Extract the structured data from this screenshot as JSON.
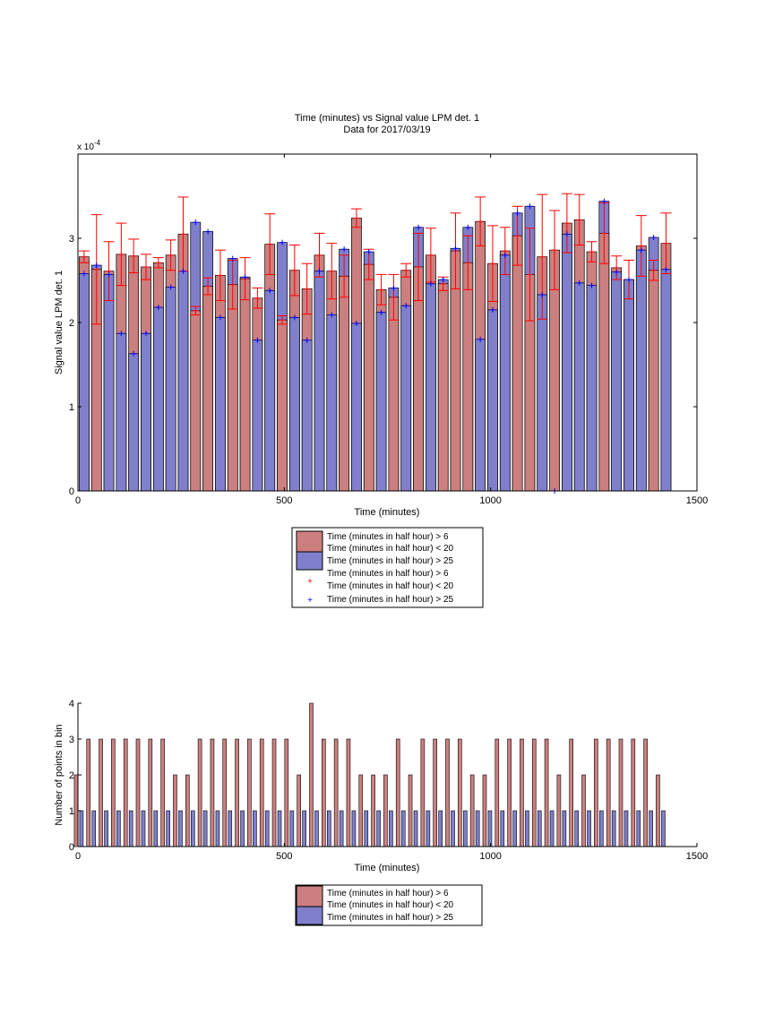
{
  "colors": {
    "red_bar": "#cc7f7f",
    "blue_bar": "#7f7fcc",
    "error_bar": "#ff0000",
    "blue_marker": "#0000ff",
    "axis": "#000000"
  },
  "chart_data": [
    {
      "type": "bar",
      "title": "Time (minutes) vs Signal value LPM det. 1",
      "subtitle": "Data for 2017/03/19",
      "xlabel": "Time (minutes)",
      "ylabel": "Signal value LPM det. 1",
      "exponent_label": "x 10",
      "exponent_power": "-4",
      "xlim": [
        0,
        1500
      ],
      "ylim": [
        0,
        4
      ],
      "xticks": [
        "0",
        "500",
        "1000",
        "1500"
      ],
      "yticks": [
        "0",
        "1",
        "2",
        "3"
      ],
      "x": [
        15,
        45,
        75,
        105,
        135,
        165,
        195,
        225,
        255,
        285,
        315,
        345,
        375,
        405,
        435,
        465,
        495,
        525,
        555,
        585,
        615,
        645,
        675,
        705,
        735,
        765,
        795,
        825,
        855,
        885,
        915,
        945,
        975,
        1005,
        1035,
        1065,
        1095,
        1125,
        1155,
        1185,
        1215,
        1245,
        1275,
        1305,
        1335,
        1365,
        1395,
        1425
      ],
      "series": [
        {
          "name": "Time (minutes in half hour) > 6\nTime (minutes in half hour) < 20",
          "values": [
            2.78,
            2.63,
            2.61,
            2.81,
            2.79,
            2.66,
            2.71,
            2.8,
            3.05,
            2.14,
            2.43,
            2.56,
            2.45,
            2.52,
            2.29,
            2.93,
            2.03,
            2.62,
            2.4,
            2.8,
            2.61,
            2.55,
            3.24,
            2.69,
            2.39,
            2.3,
            2.62,
            2.66,
            2.8,
            2.46,
            2.85,
            2.71,
            3.2,
            2.7,
            2.85,
            3.03,
            2.57,
            2.78,
            2.86,
            3.18,
            3.22,
            2.84,
            3.06,
            2.65,
            2.51,
            2.91,
            2.62,
            2.94
          ],
          "errors": [
            0.07,
            0.65,
            0.35,
            0.37,
            0.2,
            0.15,
            0.06,
            0.18,
            0.44,
            0.05,
            0.1,
            0.3,
            0.29,
            0.25,
            0.12,
            0.36,
            0.05,
            0.3,
            0.3,
            0.26,
            0.33,
            0.25,
            0.11,
            0.18,
            0.18,
            0.27,
            0.08,
            0.4,
            0.32,
            0.08,
            0.45,
            0.32,
            0.29,
            0.45,
            0.28,
            0.35,
            0.55,
            0.74,
            0.47,
            0.35,
            0.3,
            0.12,
            0.36,
            0.14,
            0.23,
            0.36,
            0.12,
            0.36
          ]
        },
        {
          "name": "Time (minutes in half hour) > 25",
          "values": [
            2.58,
            2.68,
            2.57,
            1.87,
            1.63,
            1.87,
            2.18,
            2.42,
            2.61,
            3.19,
            3.08,
            2.06,
            2.76,
            2.54,
            1.79,
            2.38,
            2.95,
            2.06,
            1.79,
            2.61,
            2.09,
            2.87,
            1.99,
            2.84,
            2.12,
            2.41,
            2.2,
            3.13,
            2.46,
            2.51,
            2.88,
            3.13,
            1.8,
            2.15,
            2.8,
            3.3,
            3.38,
            2.33,
            0.0,
            3.05,
            2.47,
            2.44,
            3.44,
            2.6,
            2.51,
            2.86,
            3.01,
            2.63
          ]
        }
      ],
      "legend": [
        "Time (minutes in half hour) > 6",
        "Time (minutes in half hour) < 20",
        "Time (minutes in half hour) > 25",
        "Time (minutes in half hour) > 6",
        "Time (minutes in half hour) < 20",
        "Time (minutes in half hour) > 25"
      ],
      "legend_placement": "below"
    },
    {
      "type": "bar",
      "xlabel": "Time (minutes)",
      "ylabel": "Number of points in bin",
      "xlim": [
        0,
        1500
      ],
      "ylim": [
        0,
        4
      ],
      "xticks": [
        "0",
        "500",
        "1000",
        "1500"
      ],
      "yticks": [
        "0",
        "1",
        "2",
        "3",
        "4"
      ],
      "x": [
        15,
        45,
        75,
        105,
        135,
        165,
        195,
        225,
        255,
        285,
        315,
        345,
        375,
        405,
        435,
        465,
        495,
        525,
        555,
        585,
        615,
        645,
        675,
        705,
        735,
        765,
        795,
        825,
        855,
        885,
        915,
        945,
        975,
        1005,
        1035,
        1065,
        1095,
        1125,
        1155,
        1185,
        1215,
        1245,
        1275,
        1305,
        1335,
        1365,
        1395,
        1425
      ],
      "series": [
        {
          "name": "Time (minutes in half hour) > 6\nTime (minutes in half hour) < 20",
          "values": [
            2,
            3,
            3,
            3,
            3,
            3,
            3,
            3,
            2,
            2,
            3,
            3,
            3,
            3,
            3,
            3,
            3,
            3,
            2,
            4,
            3,
            3,
            3,
            2,
            2,
            2,
            3,
            2,
            3,
            3,
            3,
            3,
            2,
            2,
            3,
            3,
            3,
            3,
            3,
            2,
            3,
            2,
            3,
            3,
            3,
            3,
            3,
            2
          ]
        },
        {
          "name": "Time (minutes in half hour) > 25",
          "values": [
            1,
            1,
            1,
            1,
            1,
            1,
            1,
            1,
            1,
            1,
            1,
            1,
            1,
            1,
            1,
            1,
            1,
            1,
            1,
            1,
            1,
            1,
            1,
            1,
            1,
            1,
            1,
            1,
            1,
            1,
            1,
            1,
            1,
            1,
            1,
            1,
            1,
            1,
            1,
            1,
            1,
            1,
            1,
            1,
            1,
            1,
            1,
            1
          ]
        }
      ],
      "legend": [
        "Time (minutes in half hour) > 6",
        "Time (minutes in half hour) < 20",
        "Time (minutes in half hour) > 25"
      ],
      "legend_placement": "below"
    }
  ]
}
